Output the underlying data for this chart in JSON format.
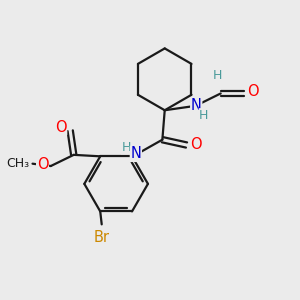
{
  "background_color": "#ebebeb",
  "bond_color": "#1a1a1a",
  "atom_colors": {
    "O": "#ff0000",
    "N": "#0000cd",
    "Br": "#cc8800",
    "C": "#1a1a1a",
    "H": "#4a9a9a"
  },
  "figsize": [
    3.0,
    3.0
  ],
  "dpi": 100
}
